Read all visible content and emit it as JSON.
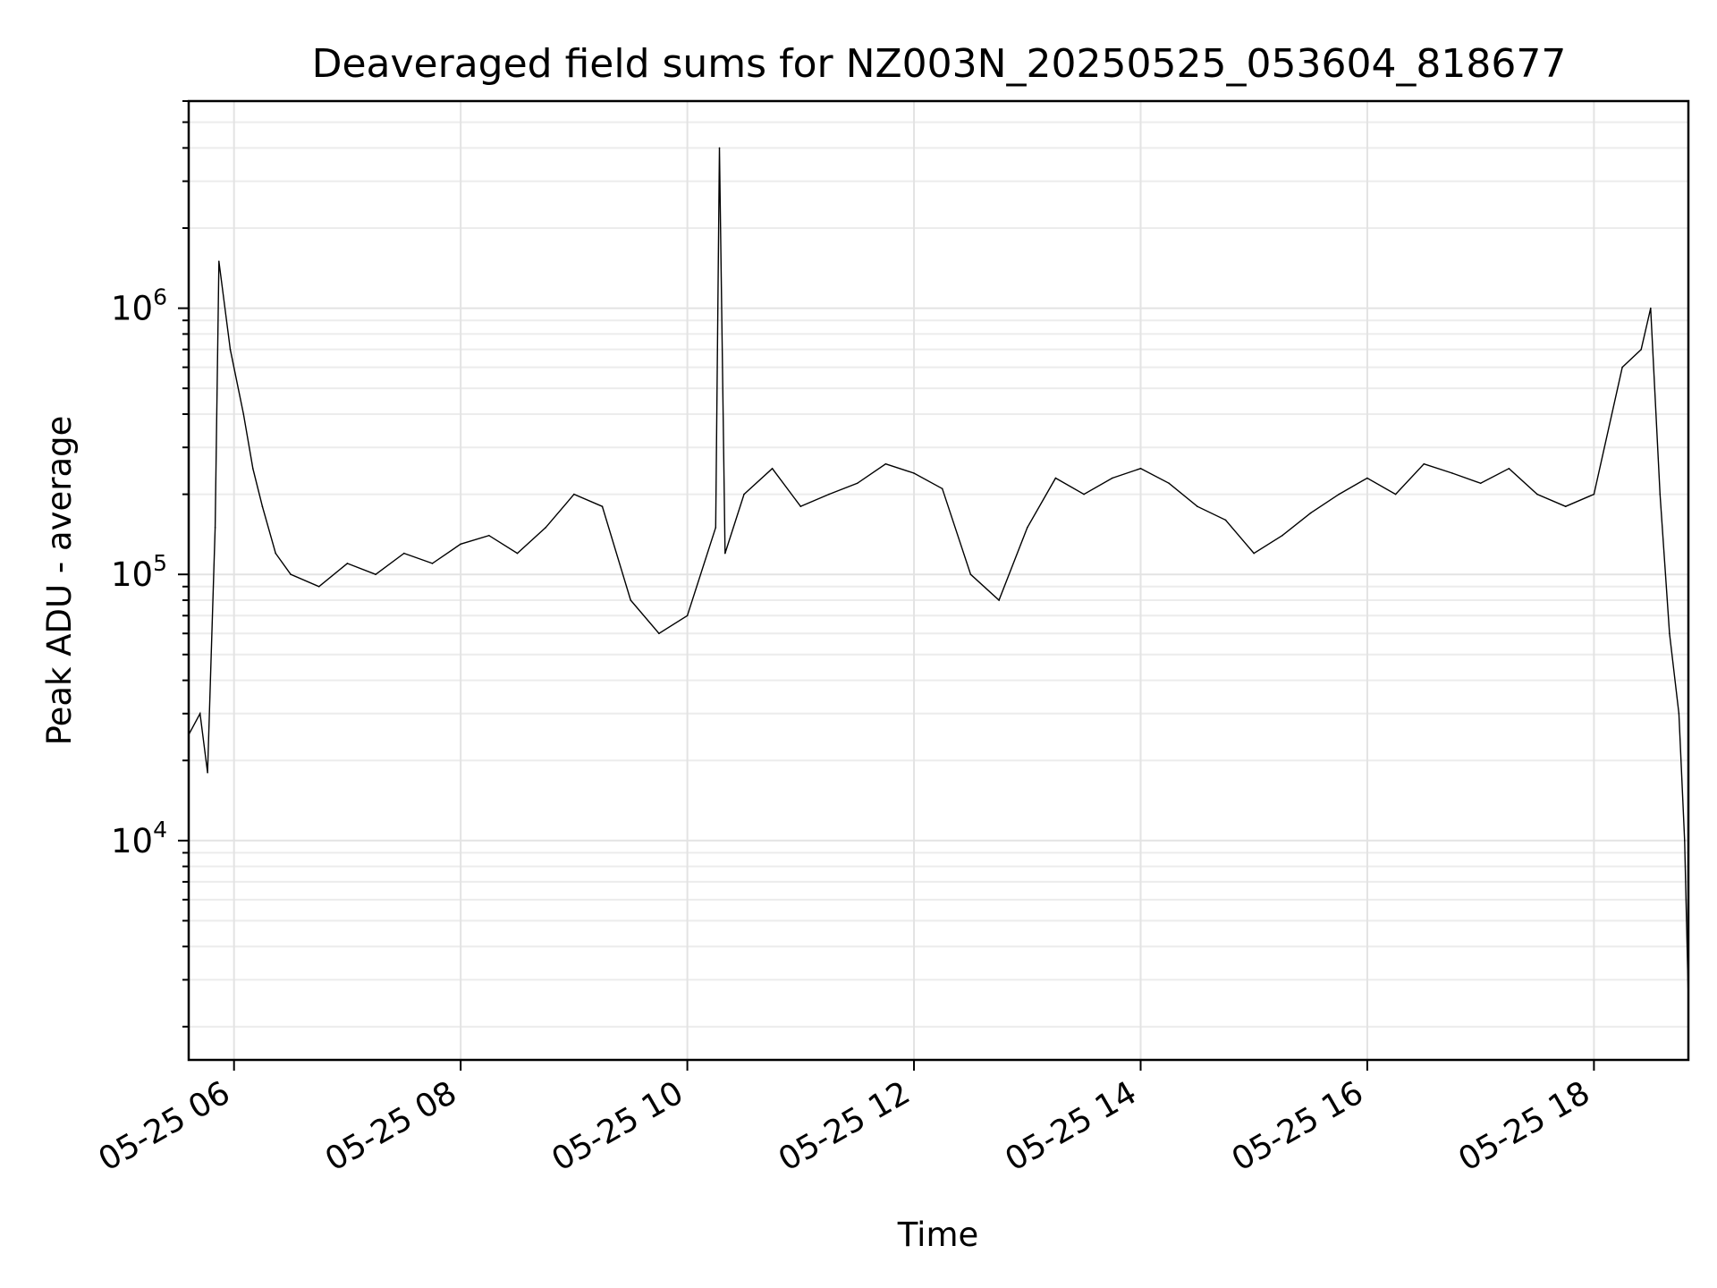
{
  "chart_data": {
    "type": "line",
    "title": "Deaveraged field sums for NZ003N_20250525_053604_818677",
    "xlabel": "Time",
    "ylabel": "Peak ADU - average",
    "yscale": "log",
    "grid": true,
    "x_range": [
      "2025-05-25 05:36",
      "2025-05-25 18:50"
    ],
    "x_ticks": [
      "05-25 06",
      "05-25 08",
      "05-25 10",
      "05-25 12",
      "05-25 14",
      "05-25 16",
      "05-25 18"
    ],
    "x_tick_hours": [
      6,
      8,
      10,
      12,
      14,
      16,
      18
    ],
    "ylim": [
      1500,
      6000000
    ],
    "y_ticks": [
      {
        "base": "10",
        "exp": "4",
        "value": 10000
      },
      {
        "base": "10",
        "exp": "5",
        "value": 100000
      },
      {
        "base": "10",
        "exp": "6",
        "value": 1000000
      }
    ],
    "series": [
      {
        "color": "#000000",
        "x": [
          "05:36",
          "05:42",
          "05:46",
          "05:50",
          "05:52",
          "05:58",
          "06:05",
          "06:10",
          "06:15",
          "06:22",
          "06:30",
          "06:45",
          "07:00",
          "07:15",
          "07:30",
          "07:45",
          "08:00",
          "08:15",
          "08:30",
          "08:45",
          "09:00",
          "09:15",
          "09:30",
          "09:45",
          "10:00",
          "10:15",
          "10:17",
          "10:20",
          "10:30",
          "10:45",
          "11:00",
          "11:15",
          "11:30",
          "11:45",
          "12:00",
          "12:15",
          "12:30",
          "12:45",
          "13:00",
          "13:15",
          "13:30",
          "13:45",
          "14:00",
          "14:15",
          "14:30",
          "14:45",
          "15:00",
          "15:15",
          "15:30",
          "15:45",
          "16:00",
          "16:15",
          "16:30",
          "16:45",
          "17:00",
          "17:15",
          "17:30",
          "17:45",
          "18:00",
          "18:15",
          "18:25",
          "18:30",
          "18:35",
          "18:40",
          "18:45",
          "18:48",
          "18:50"
        ],
        "y": [
          25000,
          30000,
          18000,
          150000,
          1500000,
          700000,
          400000,
          250000,
          180000,
          120000,
          100000,
          90000,
          110000,
          100000,
          120000,
          110000,
          130000,
          140000,
          120000,
          150000,
          200000,
          180000,
          80000,
          60000,
          70000,
          150000,
          4000000,
          120000,
          200000,
          250000,
          180000,
          200000,
          220000,
          260000,
          240000,
          210000,
          100000,
          80000,
          150000,
          230000,
          200000,
          230000,
          250000,
          220000,
          180000,
          160000,
          120000,
          140000,
          170000,
          200000,
          230000,
          200000,
          260000,
          240000,
          220000,
          250000,
          200000,
          180000,
          200000,
          600000,
          700000,
          1000000,
          200000,
          60000,
          30000,
          10000,
          2500
        ]
      }
    ]
  }
}
